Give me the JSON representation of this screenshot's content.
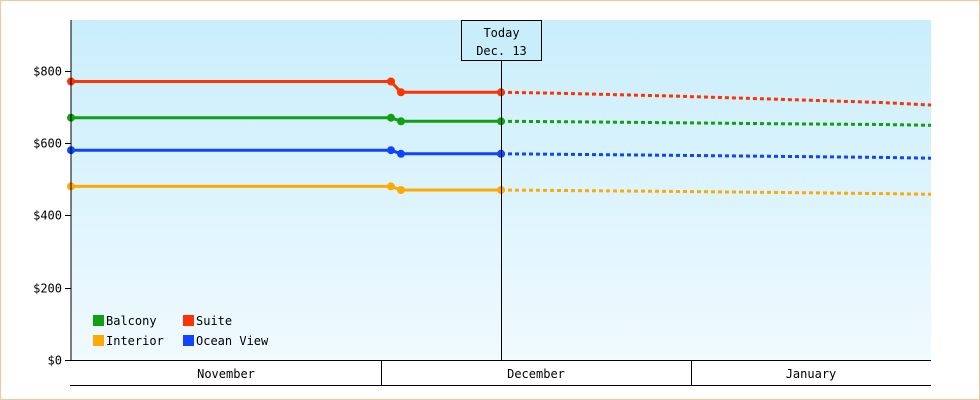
{
  "chart_data": {
    "type": "line",
    "title": "",
    "xlabel": "",
    "ylabel": "",
    "ylim": [
      0,
      940
    ],
    "yticks": [
      0,
      200,
      400,
      600,
      800
    ],
    "y_tick_labels": [
      "$0",
      "$200",
      "$400",
      "$600",
      "$800"
    ],
    "xlim": [
      "2014-10-31",
      "2015-01-25"
    ],
    "months": [
      {
        "label": "November",
        "start": "2014-10-31",
        "end": "2014-12-01"
      },
      {
        "label": "December",
        "start": "2014-12-01",
        "end": "2015-01-01"
      },
      {
        "label": "January",
        "start": "2015-01-01",
        "end": "2015-01-25"
      }
    ],
    "today": {
      "line1": "Today",
      "line2": "Dec. 13",
      "date": "2014-12-13"
    },
    "legend_position": "bottom-left",
    "background": {
      "top": "#c9eefb",
      "bottom": "#f0faff"
    },
    "series": [
      {
        "name": "Suite",
        "color": "#ff3300",
        "history": [
          [
            "2014-10-31",
            770
          ],
          [
            "2014-12-02",
            770
          ],
          [
            "2014-12-03",
            740
          ],
          [
            "2014-12-13",
            740
          ]
        ],
        "forecast": [
          [
            "2014-12-13",
            740
          ],
          [
            "2014-12-18",
            738
          ],
          [
            "2014-12-30",
            730
          ],
          [
            "2015-01-06",
            724
          ],
          [
            "2015-01-13",
            718
          ],
          [
            "2015-01-20",
            712
          ],
          [
            "2015-01-25",
            705
          ]
        ]
      },
      {
        "name": "Balcony",
        "color": "#11a011",
        "history": [
          [
            "2014-10-31",
            670
          ],
          [
            "2014-12-02",
            670
          ],
          [
            "2014-12-03",
            660
          ],
          [
            "2014-12-13",
            660
          ]
        ],
        "forecast": [
          [
            "2014-12-13",
            660
          ],
          [
            "2014-12-18",
            659
          ],
          [
            "2014-12-30",
            656
          ],
          [
            "2015-01-10",
            653
          ],
          [
            "2015-01-20",
            651
          ],
          [
            "2015-01-25",
            649
          ]
        ]
      },
      {
        "name": "Ocean View",
        "color": "#1144ff",
        "history": [
          [
            "2014-10-31",
            580
          ],
          [
            "2014-12-02",
            580
          ],
          [
            "2014-12-03",
            570
          ],
          [
            "2014-12-13",
            570
          ]
        ],
        "forecast": [
          [
            "2014-12-13",
            570
          ],
          [
            "2014-12-18",
            569
          ],
          [
            "2014-12-30",
            566
          ],
          [
            "2015-01-10",
            563
          ],
          [
            "2015-01-20",
            560
          ],
          [
            "2015-01-25",
            558
          ]
        ]
      },
      {
        "name": "Interior",
        "color": "#ffaa00",
        "history": [
          [
            "2014-10-31",
            480
          ],
          [
            "2014-12-02",
            480
          ],
          [
            "2014-12-03",
            470
          ],
          [
            "2014-12-13",
            470
          ]
        ],
        "forecast": [
          [
            "2014-12-13",
            470
          ],
          [
            "2014-12-18",
            469
          ],
          [
            "2014-12-30",
            466
          ],
          [
            "2015-01-10",
            463
          ],
          [
            "2015-01-20",
            460
          ],
          [
            "2015-01-25",
            458
          ]
        ]
      }
    ],
    "legend": [
      {
        "label": "Balcony",
        "color": "#11a011"
      },
      {
        "label": "Suite",
        "color": "#ff3300"
      },
      {
        "label": "Interior",
        "color": "#ffaa00"
      },
      {
        "label": "Ocean View",
        "color": "#1144ff"
      }
    ]
  }
}
